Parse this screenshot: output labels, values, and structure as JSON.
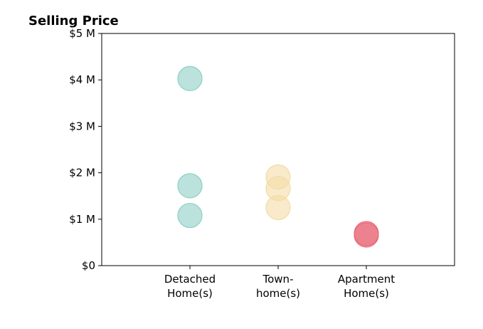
{
  "chart_data": {
    "type": "scatter",
    "title": "Selling Price",
    "xlabel": "",
    "ylabel": "",
    "categories": [
      [
        "Detached",
        "Home(s)"
      ],
      [
        "Town-",
        "home(s)"
      ],
      [
        "Apartment",
        "Home(s)"
      ]
    ],
    "xlim": [
      0,
      4
    ],
    "ylim": [
      0,
      5
    ],
    "y_ticks": [
      0,
      1,
      2,
      3,
      4,
      5
    ],
    "y_tick_labels": [
      "$0",
      "$1 M",
      "$2 M",
      "$3 M",
      "$4 M",
      "$5 M"
    ],
    "grid": false,
    "legend": "none",
    "series": [
      {
        "category": 0,
        "color": "#8ecfc4",
        "values": [
          4.03,
          1.72,
          1.08
        ]
      },
      {
        "category": 1,
        "color": "#f3dca6",
        "values": [
          1.91,
          1.66,
          1.25
        ]
      },
      {
        "category": 2,
        "color": "#ea6a7a",
        "values": [
          0.69,
          0.66
        ]
      }
    ]
  }
}
